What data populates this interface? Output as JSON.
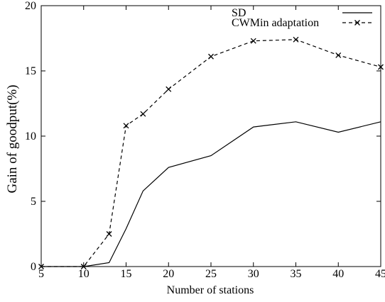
{
  "chart_data": {
    "type": "line",
    "title": "",
    "xlabel": "Number of stations",
    "ylabel": "Gain of goodput(%)",
    "xlim": [
      5,
      45
    ],
    "ylim": [
      0,
      20
    ],
    "xticks": [
      "5",
      "10",
      "15",
      "20",
      "25",
      "30",
      "35",
      "40",
      "45"
    ],
    "yticks": [
      "0",
      "5",
      "10",
      "15",
      "20"
    ],
    "grid": false,
    "legend_position": "top-right",
    "series": [
      {
        "name": "SD",
        "style": "solid",
        "marker": "none",
        "color": "#000000",
        "x": [
          5,
          10,
          13,
          15,
          17,
          20,
          25,
          30,
          35,
          40,
          45
        ],
        "y": [
          0,
          0,
          0.3,
          2.9,
          5.8,
          7.6,
          8.5,
          10.7,
          11.1,
          10.3,
          11.1
        ]
      },
      {
        "name": "CWMin adaptation",
        "style": "dashed",
        "marker": "x",
        "color": "#000000",
        "x": [
          5,
          10,
          13,
          15,
          17,
          20,
          25,
          30,
          35,
          40,
          45
        ],
        "y": [
          0,
          0,
          2.5,
          10.8,
          11.7,
          13.6,
          16.1,
          17.3,
          17.4,
          16.2,
          15.3
        ]
      }
    ]
  }
}
